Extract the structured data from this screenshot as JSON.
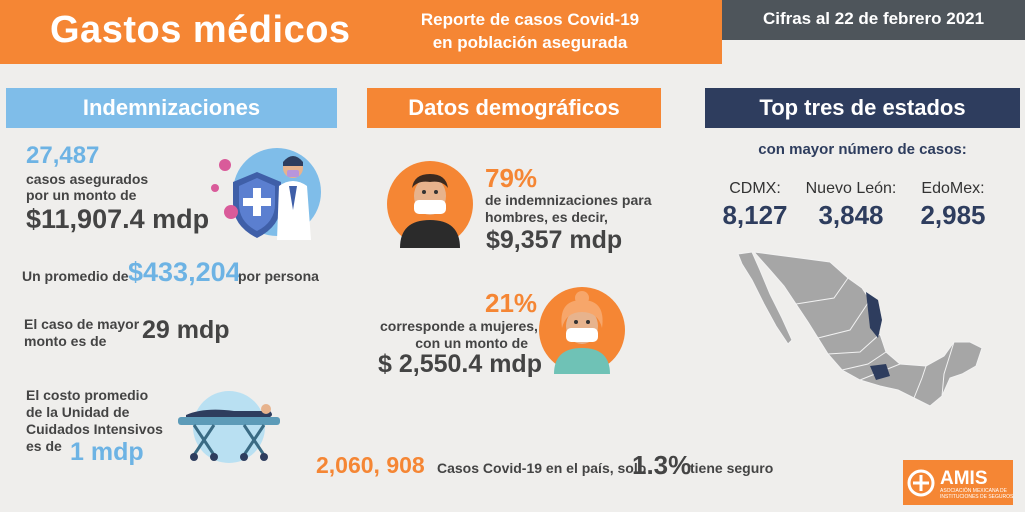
{
  "header": {
    "title": "Gastos médicos",
    "subtitle_line1": "Reporte de casos Covid-19",
    "subtitle_line2": "en población asegurada",
    "date": "Cifras al 22 de febrero 2021"
  },
  "indemnizaciones": {
    "heading": "Indemnizaciones",
    "count": "27,487",
    "count_text_line1": "casos asegurados",
    "count_text_line2": "por un monto de",
    "amount": "$11,907.4 mdp",
    "avg_pre": "Un promedio de",
    "avg_value": "$433,204",
    "avg_post": "por persona",
    "max_line1": "El caso de mayor",
    "max_line2": "monto es de",
    "max_value": "29 mdp",
    "uci_line1": "El costo promedio",
    "uci_line2": "de la Unidad de",
    "uci_line3": "Cuidados Intensivos",
    "uci_line4": "es de",
    "uci_value": "1 mdp"
  },
  "demograficos": {
    "heading": "Datos demográficos",
    "men_pct": "79%",
    "men_line1": "de indemnizaciones para",
    "men_line2": "hombres, es decir,",
    "men_amount": "$9,357 mdp",
    "women_pct": "21%",
    "women_line1": "corresponde a mujeres,",
    "women_line2": "con un monto de",
    "women_amount": "$ 2,550.4 mdp"
  },
  "totals": {
    "cases": "2,060, 908",
    "text": "Casos Covid-19 en el país, solo",
    "pct": "1.3%",
    "post": "tiene seguro"
  },
  "top_states": {
    "heading": "Top tres de estados",
    "subheading": "con mayor número de casos:",
    "states": [
      {
        "name": "CDMX:",
        "value": "8,127"
      },
      {
        "name": "Nuevo León:",
        "value": "3,848"
      },
      {
        "name": "EdoMex:",
        "value": "2,985"
      }
    ]
  },
  "logo": {
    "name": "AMIS",
    "tagline_line1": "ASOCIACIÓN MEXICANA DE",
    "tagline_line2": "INSTITUCIONES DE SEGUROS"
  },
  "colors": {
    "orange": "#f58634",
    "blue": "#7fbde9",
    "navy": "#2e3d5e",
    "gray": "#4e555b"
  },
  "icons": [
    "doctor-shield-icon",
    "man-mask-icon",
    "woman-mask-icon",
    "icu-bed-icon",
    "mexico-map-icon",
    "amis-logo-icon"
  ]
}
